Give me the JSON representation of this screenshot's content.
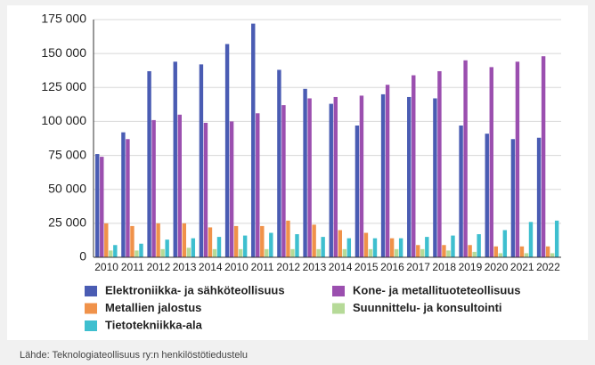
{
  "chart_data": {
    "type": "bar",
    "categories": [
      "2010",
      "2011",
      "2012",
      "2013",
      "2014",
      "2010",
      "2011",
      "2012",
      "2013",
      "2014",
      "2015",
      "2016",
      "2017",
      "2018",
      "2019",
      "2020",
      "2021",
      "2022"
    ],
    "series": [
      {
        "name": "Elektroniikka- ja sähköteollisuus",
        "color": "#4a5cb3",
        "values": [
          76000,
          92000,
          137000,
          144000,
          142000,
          157000,
          172000,
          138000,
          124000,
          113000,
          97000,
          120000,
          118000,
          117000,
          97000,
          91000,
          87000,
          88000
        ]
      },
      {
        "name": "Kone- ja metallituoteteollisuus",
        "color": "#9b4faf",
        "values": [
          74000,
          87000,
          101000,
          105000,
          99000,
          100000,
          106000,
          112000,
          117000,
          118000,
          119000,
          127000,
          134000,
          137000,
          145000,
          140000,
          144000,
          148000
        ]
      },
      {
        "name": "Metallien jalostus",
        "color": "#f0924a",
        "values": [
          25000,
          23000,
          25000,
          25000,
          22000,
          23000,
          23000,
          27000,
          24000,
          20000,
          18000,
          14000,
          9000,
          9000,
          9000,
          8000,
          8000,
          8000
        ]
      },
      {
        "name": "Suunnittelu- ja konsultointi",
        "color": "#b6da98",
        "values": [
          5000,
          5000,
          6000,
          7000,
          6000,
          6000,
          6000,
          6000,
          6000,
          6000,
          6000,
          6000,
          6000,
          5000,
          4000,
          3000,
          3000,
          3000
        ]
      },
      {
        "name": "Tietotekniikka-ala",
        "color": "#3ebfcf",
        "values": [
          9000,
          10000,
          13000,
          14000,
          15000,
          16000,
          18000,
          17000,
          15000,
          14000,
          14000,
          14000,
          15000,
          16000,
          17000,
          20000,
          26000,
          27000
        ]
      }
    ],
    "ylim": [
      0,
      175000
    ],
    "yticks": [
      0,
      {
        "value": 25000,
        "label": "25 000"
      },
      {
        "value": 50000,
        "label": "50 000"
      },
      {
        "value": 75000,
        "label": "75 000"
      },
      {
        "value": 100000,
        "label": "100 000"
      },
      {
        "value": 125000,
        "label": "125 000"
      },
      {
        "value": 150000,
        "label": "150 000"
      },
      {
        "value": 175000,
        "label": "175 000"
      }
    ],
    "grid": true,
    "source": "Lähde: Teknologiateollisuus ry:n henkilöstötiedustelu"
  }
}
